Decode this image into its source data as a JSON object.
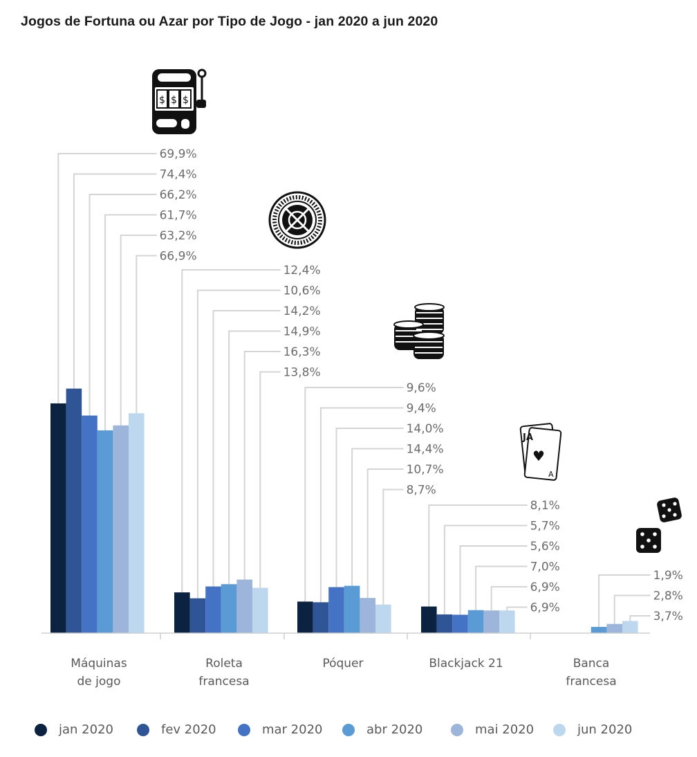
{
  "chart_data": {
    "type": "bar",
    "title": "Jogos de Fortuna ou Azar por Tipo de Jogo - jan 2020 a jun 2020",
    "categories": [
      [
        "Máquinas",
        "de jogo"
      ],
      [
        "Roleta",
        "francesa"
      ],
      [
        "Póquer"
      ],
      [
        "Blackjack 21"
      ],
      [
        "Banca",
        "francesa"
      ]
    ],
    "category_icons": [
      "slot-machine-icon",
      "roulette-wheel-icon",
      "poker-chips-icon",
      "playing-cards-icon",
      "dice-icon"
    ],
    "series": [
      {
        "name": "jan 2020",
        "color": "#0b2340",
        "values": [
          69.9,
          12.4,
          9.6,
          8.1,
          null
        ]
      },
      {
        "name": "fev 2020",
        "color": "#2f5597",
        "values": [
          74.4,
          10.6,
          9.4,
          5.7,
          null
        ]
      },
      {
        "name": "mar 2020",
        "color": "#4472c4",
        "values": [
          66.2,
          14.2,
          14.0,
          5.6,
          null
        ]
      },
      {
        "name": "abr 2020",
        "color": "#5b9bd5",
        "values": [
          61.7,
          14.9,
          14.4,
          7.0,
          1.9
        ]
      },
      {
        "name": "mai 2020",
        "color": "#9db5da",
        "values": [
          63.2,
          16.3,
          10.7,
          6.9,
          2.8
        ]
      },
      {
        "name": "jun 2020",
        "color": "#bdd7ee",
        "values": [
          66.9,
          13.8,
          8.7,
          6.9,
          3.7
        ]
      }
    ],
    "data_labels": [
      [
        "69,9%",
        "74,4%",
        "66,2%",
        "61,7%",
        "63,2%",
        "66,9%"
      ],
      [
        "12,4%",
        "10,6%",
        "14,2%",
        "14,9%",
        "16,3%",
        "13,8%"
      ],
      [
        "9,6%",
        "9,4%",
        "14,0%",
        "14,4%",
        "10,7%",
        "8,7%"
      ],
      [
        "8,1%",
        "5,7%",
        "5,6%",
        "7,0%",
        "6,9%",
        "6,9%"
      ],
      [
        "1,9%",
        "2,8%",
        "3,7%"
      ]
    ],
    "legend_position": "bottom",
    "grid": false
  }
}
